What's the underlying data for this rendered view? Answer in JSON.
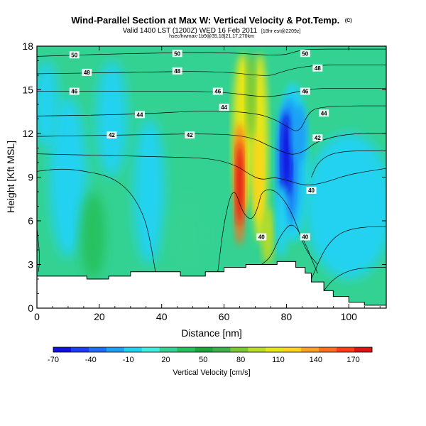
{
  "title": "Wind-Parallel Section at Max W: Vertical Velocity & Pot.Temp.",
  "title_mark": "(C)",
  "subtitle": "Valid 1400 LST (1200Z) WED 16 Feb 2011",
  "subtitle_small": "[18hr est@2209z]",
  "subtitle_line2": "hsec/hwmax-1b9@35,18|21.17,270km",
  "chart_data": {
    "type": "heatmap",
    "xlabel": "Distance [nm]",
    "ylabel": "Height [Kft MSL]",
    "xlim": [
      0,
      112
    ],
    "ylim": [
      0,
      18
    ],
    "x_ticks": [
      "0",
      "20",
      "40",
      "60",
      "80",
      "100"
    ],
    "x_tick_values": [
      0,
      20,
      40,
      60,
      80,
      100
    ],
    "y_ticks": [
      "0",
      "3",
      "6",
      "9",
      "12",
      "15",
      "18"
    ],
    "y_tick_values": [
      0,
      3,
      6,
      9,
      12,
      15,
      18
    ],
    "grid": false,
    "colorbar": {
      "label": "Vertical Velocity [cm/s]",
      "tick_labels": [
        "-70",
        "-40",
        "-10",
        "20",
        "50",
        "80",
        "110",
        "140",
        "170"
      ],
      "levels": [
        -70,
        -55,
        -40,
        -25,
        -10,
        5,
        20,
        35,
        50,
        65,
        80,
        95,
        110,
        125,
        140,
        155,
        170,
        185
      ],
      "colors": [
        "#1010e0",
        "#1e3cf5",
        "#1e6ef5",
        "#1ea0f5",
        "#20d2f0",
        "#40ecdc",
        "#34d292",
        "#26c15e",
        "#1aa83c",
        "#3cb04a",
        "#7cc832",
        "#b8dc28",
        "#e6e614",
        "#ffd21e",
        "#ffa028",
        "#ff6e1e",
        "#ff3c14",
        "#dc1414"
      ],
      "position": "bottom"
    },
    "velocity_features": [
      {
        "x": 65,
        "z": 8.5,
        "value": 185
      },
      {
        "x": 68,
        "z": 10,
        "value": 80
      },
      {
        "x": 71,
        "z": 9,
        "value": 120
      },
      {
        "x": 74,
        "z": 7,
        "value": 95
      },
      {
        "x": 80,
        "z": 10,
        "value": -60
      },
      {
        "x": 84,
        "z": 12,
        "value": -25
      },
      {
        "x": 10,
        "z": 9,
        "value": -10
      },
      {
        "x": 36,
        "z": 8,
        "value": -10
      }
    ],
    "terrain": {
      "x": [
        0,
        16,
        16,
        23,
        23,
        30,
        30,
        46,
        46,
        54,
        54,
        60,
        60,
        67,
        67,
        72,
        72,
        77,
        77,
        83,
        83,
        86,
        86,
        88,
        88,
        92,
        92,
        95,
        95,
        100,
        100,
        105,
        105,
        112
      ],
      "z": [
        2.2,
        2.2,
        2.0,
        2.0,
        2.2,
        2.2,
        2.5,
        2.5,
        2.2,
        2.2,
        2.5,
        2.5,
        2.8,
        2.8,
        3.0,
        3.0,
        3.0,
        3.0,
        3.2,
        3.2,
        2.8,
        2.8,
        2.4,
        2.4,
        1.8,
        1.8,
        1.2,
        1.2,
        0.8,
        0.8,
        0.4,
        0.4,
        0.2,
        0.2
      ]
    },
    "isentropes": [
      {
        "label": "50",
        "x": [
          0,
          30,
          60,
          78,
          84,
          88,
          100,
          112
        ],
        "z": [
          17.3,
          17.5,
          17.6,
          17.3,
          17.7,
          17.8,
          17.8,
          17.8
        ],
        "label_at": [
          [
            12,
            17.4
          ],
          [
            45,
            17.5
          ],
          [
            86,
            17.5
          ]
        ]
      },
      {
        "label": "48",
        "x": [
          0,
          30,
          58,
          74,
          78,
          83,
          90,
          100,
          112
        ],
        "z": [
          16.1,
          16.2,
          16.3,
          15.9,
          16.2,
          16.5,
          16.7,
          16.7,
          16.7
        ],
        "label_at": [
          [
            16,
            16.2
          ],
          [
            45,
            16.3
          ],
          [
            90,
            16.5
          ]
        ]
      },
      {
        "label": "46",
        "x": [
          0,
          30,
          58,
          72,
          78,
          84,
          90,
          100,
          112
        ],
        "z": [
          14.9,
          14.9,
          14.9,
          14.5,
          14.6,
          14.9,
          15.1,
          15.1,
          15.1
        ],
        "label_at": [
          [
            12,
            14.9
          ],
          [
            58,
            14.9
          ],
          [
            86,
            14.9
          ]
        ]
      },
      {
        "label": "44",
        "x": [
          0,
          30,
          56,
          70,
          76,
          80,
          84,
          87,
          90,
          100,
          112
        ],
        "z": [
          13.2,
          13.3,
          13.6,
          13.4,
          13.0,
          12.5,
          12.0,
          13.4,
          13.8,
          13.9,
          13.9
        ],
        "label_at": [
          [
            33,
            13.3
          ],
          [
            60,
            13.8
          ],
          [
            92,
            13.4
          ]
        ]
      },
      {
        "label": "42",
        "x": [
          0,
          30,
          56,
          68,
          74,
          78,
          82,
          86,
          90,
          100,
          112
        ],
        "z": [
          11.8,
          11.9,
          12.0,
          11.8,
          11.2,
          10.8,
          10.5,
          10.8,
          11.5,
          12.0,
          12.0
        ],
        "label_at": [
          [
            24,
            11.9
          ],
          [
            49,
            11.9
          ],
          [
            90,
            11.7
          ]
        ]
      },
      {
        "label": "40",
        "x": [
          88,
          90,
          94,
          100,
          106,
          112
        ],
        "z": [
          9.0,
          10.0,
          10.6,
          10.8,
          10.8,
          10.8
        ],
        "label_at": [
          [
            88,
            8.1
          ]
        ]
      },
      {
        "label": "",
        "x": [
          0,
          20,
          40,
          56,
          64,
          68,
          72,
          76,
          80,
          86,
          92,
          100,
          112
        ],
        "z": [
          10.6,
          10.5,
          10.4,
          10.3,
          9.8,
          9.2,
          8.8,
          9.0,
          8.8,
          8.4,
          8.6,
          9.2,
          9.6
        ]
      },
      {
        "label": "",
        "x": [
          0,
          8,
          16,
          24,
          30,
          34,
          36,
          38
        ],
        "z": [
          9.4,
          9.6,
          9.4,
          9.0,
          8.0,
          6.5,
          5.0,
          2.5
        ]
      },
      {
        "label": "",
        "x": [
          58,
          60,
          63,
          66,
          69,
          71,
          72,
          75,
          78,
          82,
          86,
          90
        ],
        "z": [
          2.5,
          6.0,
          8.5,
          6.5,
          6.0,
          7.0,
          8.0,
          8.2,
          7.8,
          6.5,
          4.0,
          3.0
        ]
      },
      {
        "label": "",
        "x": [
          72,
          75,
          78,
          82,
          86,
          88,
          90
        ],
        "z": [
          3.0,
          3.5,
          5.0,
          6.0,
          4.5,
          3.4,
          2.4
        ]
      },
      {
        "label": "",
        "x": [
          88,
          92,
          96,
          100,
          106,
          112
        ],
        "z": [
          2.0,
          4.0,
          5.0,
          5.4,
          5.6,
          5.6
        ]
      },
      {
        "label": "",
        "x": [
          92,
          95,
          100,
          106,
          112
        ],
        "z": [
          1.2,
          2.0,
          2.6,
          2.8,
          2.8
        ]
      },
      {
        "label": "",
        "x": [
          0,
          1,
          0.5
        ],
        "z": [
          5.5,
          3.5,
          2.5
        ]
      }
    ],
    "isentrope_labels_extra": [
      {
        "label": "40",
        "x": 72,
        "z": 4.9
      },
      {
        "label": "40",
        "x": 86,
        "z": 4.9
      }
    ]
  }
}
